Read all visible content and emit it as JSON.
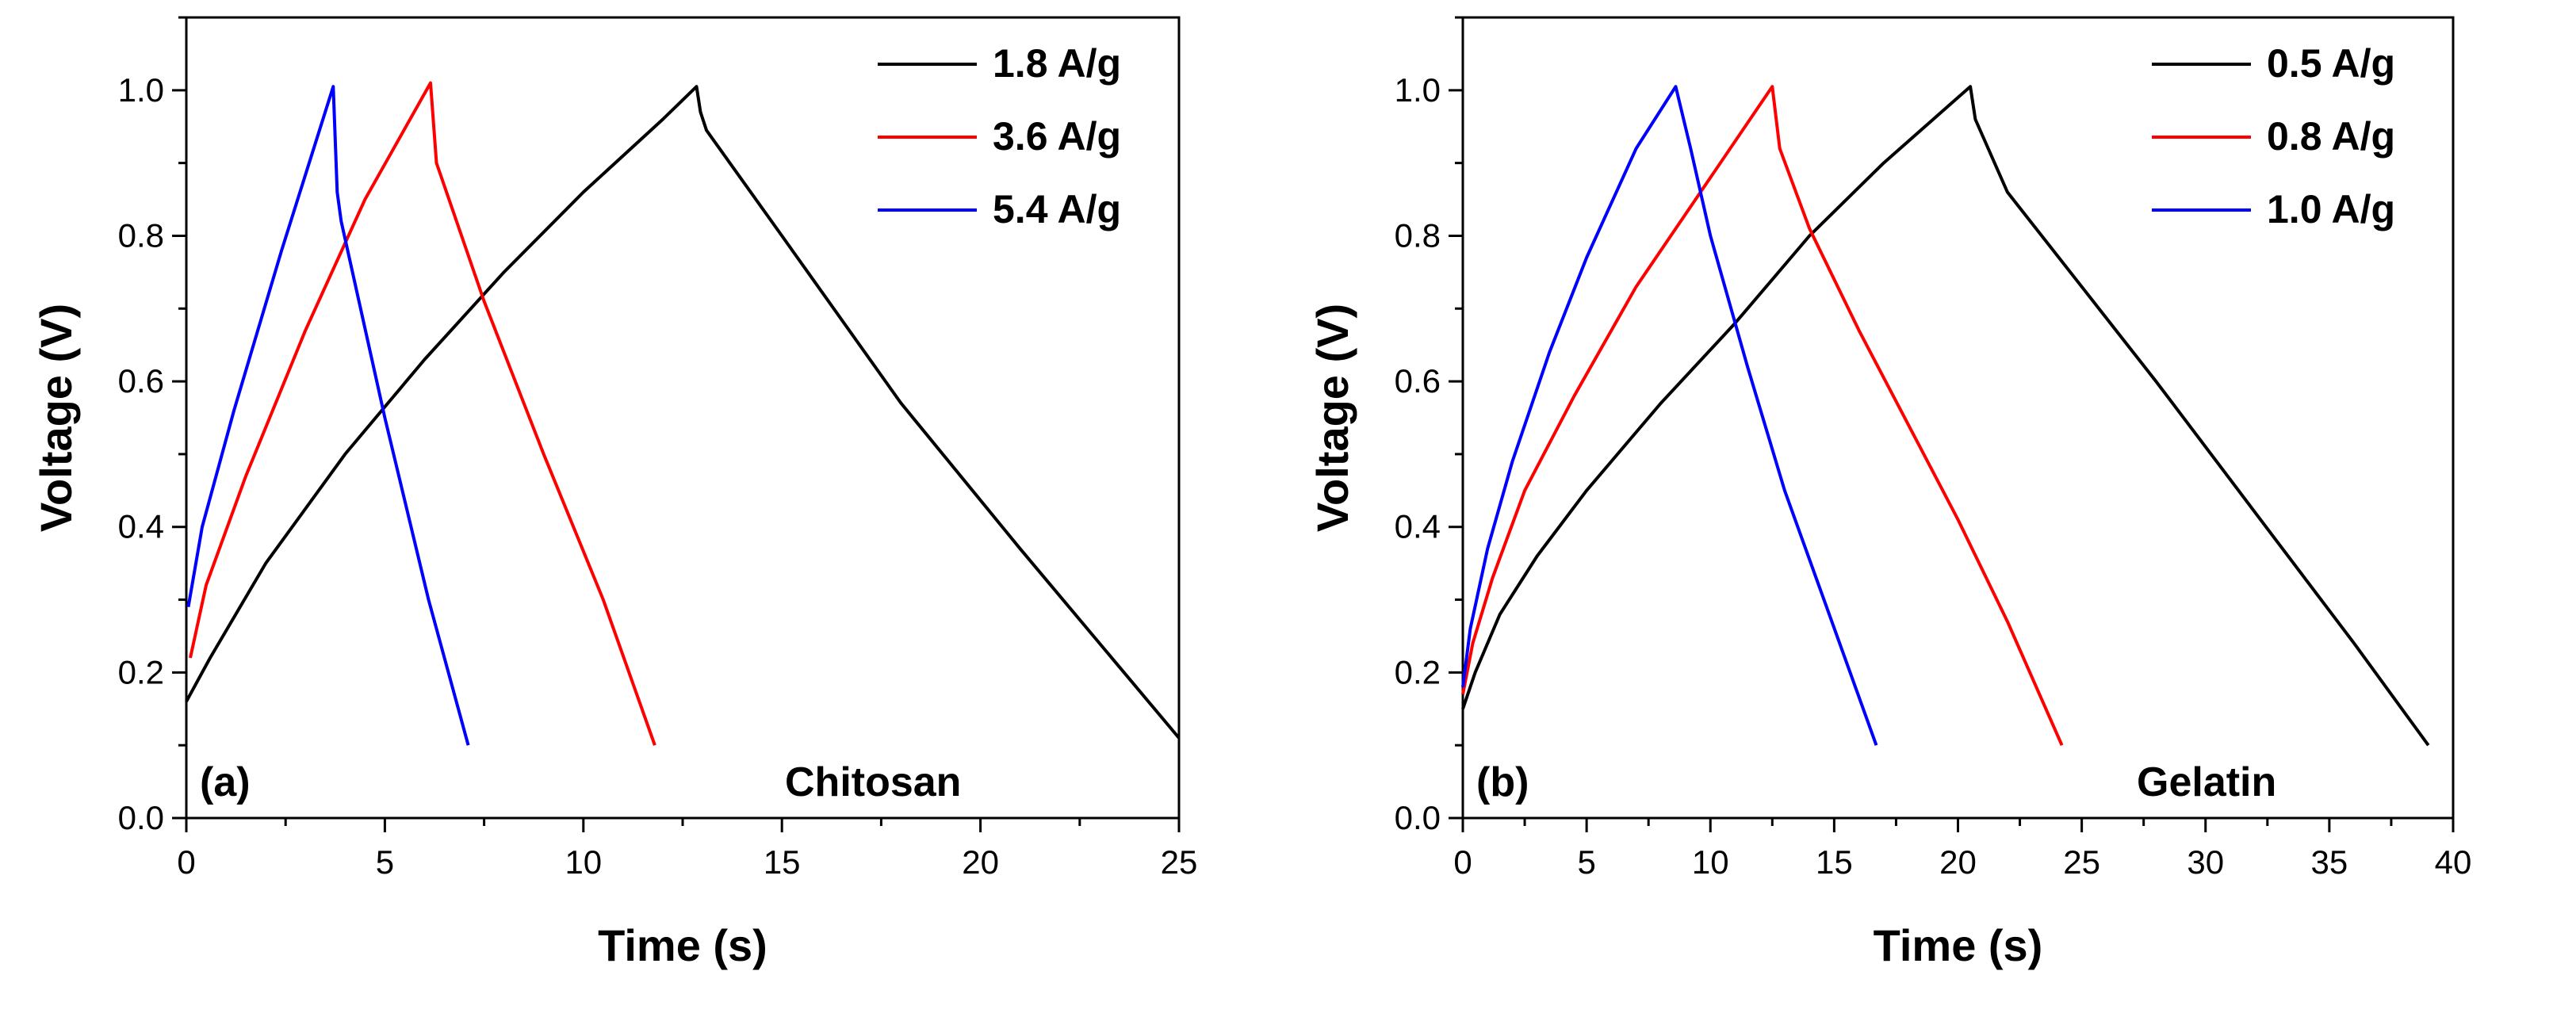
{
  "chart_data": [
    {
      "type": "line",
      "panel_label": "(a)",
      "annotation": "Chitosan",
      "xlabel": "Time (s)",
      "ylabel": "Voltage (V)",
      "xlim": [
        0,
        25
      ],
      "ylim": [
        0,
        1.1
      ],
      "xticks": [
        0,
        5,
        10,
        15,
        20,
        25
      ],
      "yticks": [
        0.0,
        0.2,
        0.4,
        0.6,
        0.8,
        1.0
      ],
      "xtick_labels": [
        "0",
        "5",
        "10",
        "15",
        "20",
        "25"
      ],
      "ytick_labels": [
        "0.0",
        "0.2",
        "0.4",
        "0.6",
        "0.8",
        "1.0"
      ],
      "legend_position": "top-right",
      "series": [
        {
          "name": "1.8 A/g",
          "color": "#000000",
          "points": [
            [
              0.0,
              0.16
            ],
            [
              0.6,
              0.22
            ],
            [
              2,
              0.35
            ],
            [
              4,
              0.5
            ],
            [
              6,
              0.63
            ],
            [
              8,
              0.75
            ],
            [
              10,
              0.86
            ],
            [
              12,
              0.96
            ],
            [
              12.85,
              1.005
            ],
            [
              12.95,
              0.97
            ],
            [
              13.1,
              0.945
            ],
            [
              15,
              0.8
            ],
            [
              18,
              0.57
            ],
            [
              21,
              0.37
            ],
            [
              25,
              0.11
            ]
          ]
        },
        {
          "name": "3.6 A/g",
          "color": "#ff0000",
          "points": [
            [
              0.1,
              0.22
            ],
            [
              0.5,
              0.32
            ],
            [
              1.5,
              0.47
            ],
            [
              3,
              0.67
            ],
            [
              4.5,
              0.85
            ],
            [
              6.15,
              1.01
            ],
            [
              6.3,
              0.9
            ],
            [
              7.5,
              0.71
            ],
            [
              9,
              0.5
            ],
            [
              10.5,
              0.3
            ],
            [
              11.8,
              0.1
            ]
          ]
        },
        {
          "name": "5.4 A/g",
          "color": "#0000ff",
          "points": [
            [
              0.05,
              0.29
            ],
            [
              0.4,
              0.4
            ],
            [
              1.2,
              0.56
            ],
            [
              2.4,
              0.78
            ],
            [
              3.7,
              1.005
            ],
            [
              3.8,
              0.86
            ],
            [
              3.9,
              0.82
            ],
            [
              5,
              0.55
            ],
            [
              6.1,
              0.3
            ],
            [
              7.1,
              0.1
            ]
          ]
        }
      ]
    },
    {
      "type": "line",
      "panel_label": "(b)",
      "annotation": "Gelatin",
      "xlabel": "Time (s)",
      "ylabel": "Voltage (V)",
      "xlim": [
        0,
        40
      ],
      "ylim": [
        0,
        1.1
      ],
      "xticks": [
        0,
        5,
        10,
        15,
        20,
        25,
        30,
        35,
        40
      ],
      "yticks": [
        0.0,
        0.2,
        0.4,
        0.6,
        0.8,
        1.0
      ],
      "xtick_labels": [
        "0",
        "5",
        "10",
        "15",
        "20",
        "25",
        "30",
        "35",
        "40"
      ],
      "ytick_labels": [
        "0.0",
        "0.2",
        "0.4",
        "0.6",
        "0.8",
        "1.0"
      ],
      "legend_position": "top-right",
      "series": [
        {
          "name": "0.5 A/g",
          "color": "#000000",
          "points": [
            [
              0.0,
              0.15
            ],
            [
              0.5,
              0.2
            ],
            [
              1.5,
              0.28
            ],
            [
              3,
              0.36
            ],
            [
              5,
              0.45
            ],
            [
              8,
              0.57
            ],
            [
              11,
              0.68
            ],
            [
              14,
              0.8
            ],
            [
              17,
              0.9
            ],
            [
              20.5,
              1.005
            ],
            [
              20.7,
              0.96
            ],
            [
              22,
              0.86
            ],
            [
              25,
              0.73
            ],
            [
              28,
              0.6
            ],
            [
              32,
              0.42
            ],
            [
              36,
              0.24
            ],
            [
              39,
              0.1
            ]
          ]
        },
        {
          "name": "0.8 A/g",
          "color": "#ff0000",
          "points": [
            [
              0.0,
              0.17
            ],
            [
              0.4,
              0.24
            ],
            [
              1.2,
              0.33
            ],
            [
              2.5,
              0.45
            ],
            [
              4.5,
              0.58
            ],
            [
              7,
              0.73
            ],
            [
              10,
              0.88
            ],
            [
              12.5,
              1.005
            ],
            [
              12.8,
              0.92
            ],
            [
              14,
              0.81
            ],
            [
              16,
              0.67
            ],
            [
              18,
              0.54
            ],
            [
              20,
              0.41
            ],
            [
              22,
              0.27
            ],
            [
              24.2,
              0.1
            ]
          ]
        },
        {
          "name": "1.0 A/g",
          "color": "#0000ff",
          "points": [
            [
              0.0,
              0.18
            ],
            [
              0.3,
              0.26
            ],
            [
              1,
              0.37
            ],
            [
              2,
              0.49
            ],
            [
              3.5,
              0.64
            ],
            [
              5,
              0.77
            ],
            [
              7,
              0.92
            ],
            [
              8.6,
              1.005
            ],
            [
              9.2,
              0.92
            ],
            [
              10,
              0.8
            ],
            [
              11.5,
              0.62
            ],
            [
              13,
              0.45
            ],
            [
              14.8,
              0.28
            ],
            [
              16.7,
              0.1
            ]
          ]
        }
      ]
    }
  ]
}
